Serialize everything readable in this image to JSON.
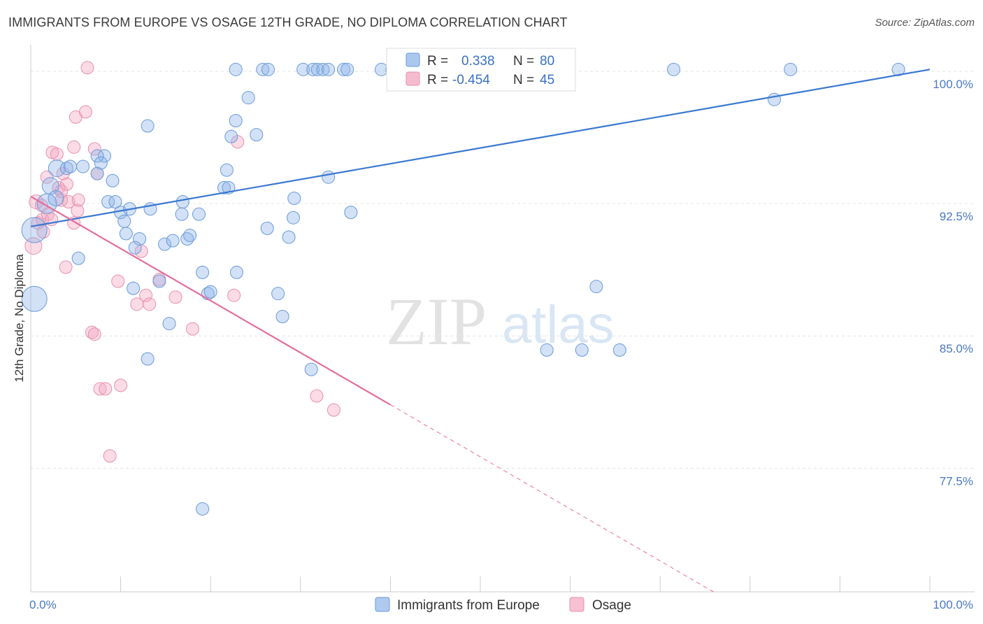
{
  "header": {
    "title": "IMMIGRANTS FROM EUROPE VS OSAGE 12TH GRADE, NO DIPLOMA CORRELATION CHART",
    "source": "Source: ZipAtlas.com"
  },
  "watermark": {
    "zip": "ZIP",
    "atlas": "atlas"
  },
  "stats": {
    "rows": [
      {
        "r_label": "R =",
        "r_value": "0.338",
        "n_label": "N =",
        "n_value": "80",
        "color": "#8fb4e8"
      },
      {
        "r_label": "R =",
        "r_value": "-0.454",
        "n_label": "N =",
        "n_value": "45",
        "color": "#f2a6c0"
      }
    ]
  },
  "legend": {
    "items": [
      {
        "label": "Immigrants from Europe",
        "color": "#8fb4e8"
      },
      {
        "label": "Osage",
        "color": "#f2a6c0"
      }
    ]
  },
  "chart_data": {
    "type": "scatter",
    "xlabel": "",
    "ylabel": "12th Grade, No Diploma",
    "xlim": [
      0,
      100
    ],
    "ylim": [
      70.5,
      101.5
    ],
    "y_ticks": [
      {
        "value": 100,
        "label": "100.0%"
      },
      {
        "value": 92.5,
        "label": "92.5%"
      },
      {
        "value": 85,
        "label": "85.0%"
      },
      {
        "value": 77.5,
        "label": "77.5%"
      }
    ],
    "x_tick_labels": [
      {
        "value": 0,
        "label": "0.0%"
      },
      {
        "value": 100,
        "label": "100.0%"
      }
    ],
    "grid": true,
    "colors": {
      "blue": "#3a78d0",
      "pink": "#e56d9b"
    },
    "series": [
      {
        "name": "Immigrants from Europe",
        "color": "#8fb4e8",
        "trend": {
          "x": [
            0,
            100
          ],
          "y": [
            91.2,
            100.1
          ],
          "dashed_x": []
        },
        "points": [
          [
            0.4,
            91.0,
            18
          ],
          [
            0.4,
            87.1,
            18
          ],
          [
            1.8,
            92.5,
            14
          ],
          [
            2.2,
            93.5,
            12
          ],
          [
            2.8,
            92.8,
            11
          ],
          [
            2.9,
            94.5,
            12
          ],
          [
            4.0,
            94.5,
            9
          ],
          [
            4.4,
            94.6,
            9
          ],
          [
            5.8,
            94.6,
            9
          ],
          [
            8.2,
            95.2,
            9
          ],
          [
            7.4,
            95.2,
            9
          ],
          [
            7.8,
            94.8,
            9
          ],
          [
            7.4,
            94.2,
            9
          ],
          [
            9.1,
            93.8,
            9
          ],
          [
            8.6,
            92.6,
            9
          ],
          [
            9.4,
            92.6,
            9
          ],
          [
            10.0,
            92.0,
            9
          ],
          [
            10.4,
            91.5,
            9
          ],
          [
            10.6,
            90.8,
            9
          ],
          [
            11.0,
            92.2,
            9
          ],
          [
            12.1,
            90.5,
            9
          ],
          [
            11.6,
            90.0,
            9
          ],
          [
            13.3,
            92.2,
            9
          ],
          [
            14.9,
            90.2,
            9
          ],
          [
            15.8,
            90.4,
            9
          ],
          [
            16.8,
            91.9,
            9
          ],
          [
            16.9,
            92.6,
            9
          ],
          [
            17.4,
            90.5,
            9
          ],
          [
            17.7,
            90.7,
            9
          ],
          [
            18.7,
            91.9,
            9
          ],
          [
            19.1,
            88.6,
            9
          ],
          [
            19.7,
            87.4,
            9
          ],
          [
            20.0,
            87.5,
            9
          ],
          [
            21.5,
            93.4,
            9
          ],
          [
            21.8,
            94.4,
            9
          ],
          [
            22.0,
            93.4,
            9
          ],
          [
            22.3,
            96.3,
            9
          ],
          [
            22.8,
            97.2,
            9
          ],
          [
            22.9,
            88.6,
            9
          ],
          [
            25.1,
            96.4,
            9
          ],
          [
            24.2,
            98.5,
            9
          ],
          [
            26.3,
            91.1,
            9
          ],
          [
            27.5,
            87.4,
            9
          ],
          [
            28.0,
            86.1,
            9
          ],
          [
            29.3,
            92.8,
            9
          ],
          [
            29.2,
            91.7,
            9
          ],
          [
            28.7,
            90.6,
            9
          ],
          [
            31.2,
            83.1,
            9
          ],
          [
            33.1,
            94.0,
            9
          ],
          [
            35.6,
            92.0,
            9
          ],
          [
            13.0,
            96.9,
            9
          ],
          [
            11.4,
            87.7,
            9
          ],
          [
            14.3,
            88.1,
            9
          ],
          [
            15.4,
            85.7,
            9
          ],
          [
            13.0,
            83.7,
            9
          ],
          [
            5.3,
            89.4,
            9
          ],
          [
            19.1,
            75.2,
            9
          ],
          [
            22.8,
            100.1,
            9
          ],
          [
            25.8,
            100.1,
            9
          ],
          [
            26.4,
            100.1,
            9
          ],
          [
            30.3,
            100.1,
            9
          ],
          [
            31.4,
            100.1,
            9
          ],
          [
            31.9,
            100.1,
            9
          ],
          [
            32.5,
            100.1,
            9
          ],
          [
            33.1,
            100.1,
            9
          ],
          [
            34.8,
            100.1,
            9
          ],
          [
            35.2,
            100.1,
            9
          ],
          [
            39.0,
            100.1,
            9
          ],
          [
            40.2,
            100.1,
            9
          ],
          [
            47.7,
            100.1,
            9
          ],
          [
            49.6,
            100.1,
            9
          ],
          [
            62.9,
            87.8,
            9
          ],
          [
            57.4,
            84.2,
            9
          ],
          [
            61.3,
            84.2,
            9
          ],
          [
            65.5,
            84.2,
            9
          ],
          [
            71.5,
            100.1,
            9
          ],
          [
            82.7,
            98.4,
            9
          ],
          [
            84.5,
            100.1,
            9
          ],
          [
            96.5,
            100.1,
            9
          ],
          [
            53.4,
            100.1,
            9
          ]
        ]
      },
      {
        "name": "Osage",
        "color": "#f2a6c0",
        "trend": {
          "x": [
            0,
            40
          ],
          "y": [
            92.9,
            81.1
          ],
          "dashed_x": [
            40,
            76
          ]
        },
        "points": [
          [
            0.3,
            90.1,
            12
          ],
          [
            0.6,
            92.6,
            10
          ],
          [
            0.8,
            91.4,
            9
          ],
          [
            1.2,
            92.4,
            9
          ],
          [
            1.3,
            91.6,
            9
          ],
          [
            1.4,
            90.9,
            9
          ],
          [
            1.8,
            94.0,
            9
          ],
          [
            1.9,
            91.9,
            9
          ],
          [
            2.3,
            91.6,
            9
          ],
          [
            2.4,
            95.4,
            9
          ],
          [
            2.9,
            95.3,
            9
          ],
          [
            3.1,
            93.4,
            9
          ],
          [
            3.4,
            92.7,
            9
          ],
          [
            3.6,
            94.2,
            9
          ],
          [
            3.4,
            93.2,
            9
          ],
          [
            4.0,
            93.6,
            9
          ],
          [
            4.2,
            92.6,
            9
          ],
          [
            3.9,
            88.9,
            9
          ],
          [
            4.8,
            91.4,
            9
          ],
          [
            5.2,
            92.1,
            9
          ],
          [
            5.3,
            92.7,
            9
          ],
          [
            4.8,
            95.7,
            9
          ],
          [
            5.0,
            97.4,
            9
          ],
          [
            6.1,
            97.7,
            9
          ],
          [
            6.3,
            100.2,
            9
          ],
          [
            6.8,
            85.2,
            9
          ],
          [
            7.1,
            85.1,
            9
          ],
          [
            7.1,
            95.6,
            9
          ],
          [
            7.4,
            94.2,
            9
          ],
          [
            7.7,
            82.0,
            9
          ],
          [
            8.3,
            82.0,
            9
          ],
          [
            10.0,
            82.2,
            9
          ],
          [
            8.8,
            78.2,
            9
          ],
          [
            12.3,
            89.8,
            9
          ],
          [
            12.8,
            87.3,
            9
          ],
          [
            14.3,
            88.2,
            9
          ],
          [
            13.2,
            86.8,
            9
          ],
          [
            16.1,
            87.2,
            9
          ],
          [
            18.0,
            85.4,
            9
          ],
          [
            22.6,
            87.3,
            9
          ],
          [
            23.0,
            96.0,
            9
          ],
          [
            33.7,
            80.8,
            9
          ],
          [
            31.8,
            81.6,
            9
          ],
          [
            11.8,
            86.8,
            9
          ],
          [
            9.7,
            88.1,
            9
          ]
        ]
      }
    ]
  }
}
